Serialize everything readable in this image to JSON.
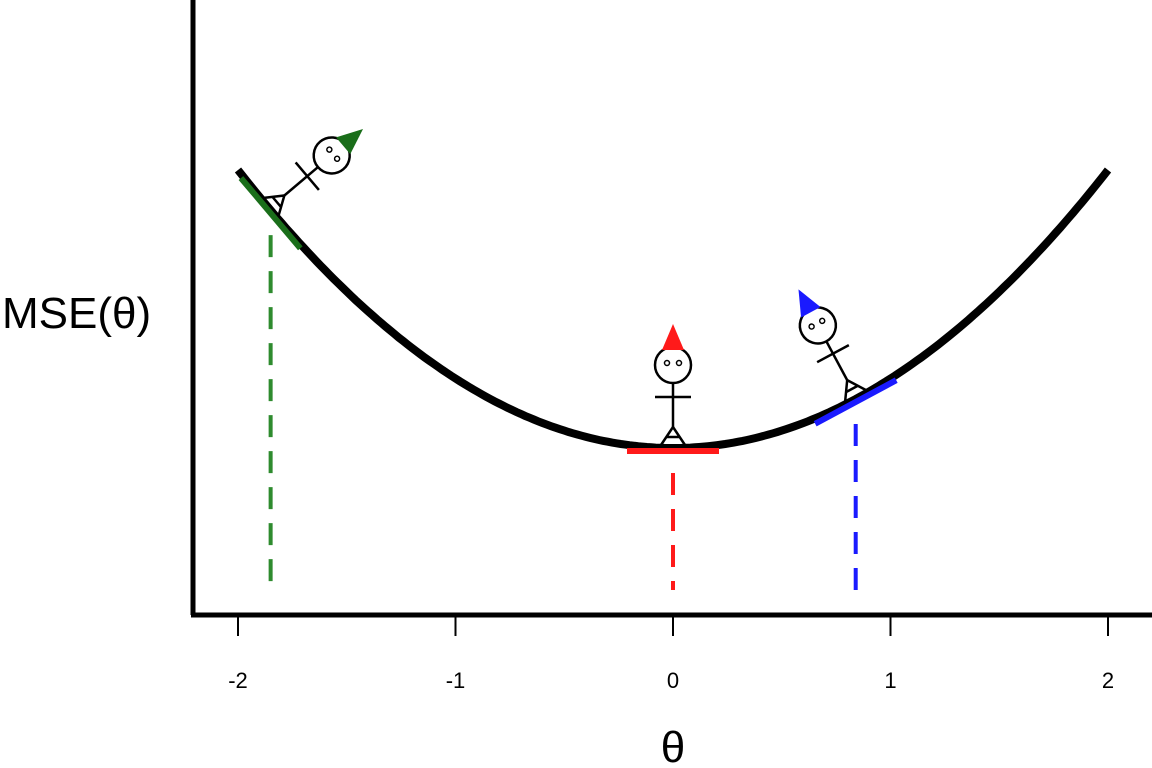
{
  "chart_data": {
    "type": "line",
    "xlabel": "θ",
    "ylabel": "MSE(θ)",
    "xlim": [
      -2.2,
      2.2
    ],
    "x_ticks": [
      -2,
      -1,
      0,
      1,
      2
    ],
    "x_tick_labels": [
      "-2",
      "-1",
      "0",
      "1",
      "2"
    ],
    "y_ticks": [],
    "grid": false,
    "series": [
      {
        "x": [
          -2,
          -1.8,
          -1.6,
          -1.4,
          -1.2,
          -1,
          -0.8,
          -0.6,
          -0.4,
          -0.2,
          0,
          0.2,
          0.4,
          0.6,
          0.8,
          1,
          1.2,
          1.4,
          1.6,
          1.8,
          2
        ],
        "y": [
          4,
          3.24,
          2.56,
          1.96,
          1.44,
          1,
          0.64,
          0.36,
          0.16,
          0.04,
          0,
          0.04,
          0.16,
          0.36,
          0.64,
          1,
          1.44,
          1.96,
          2.56,
          3.24,
          4
        ],
        "color": "#000000"
      }
    ],
    "markers": [
      {
        "x": -1.85,
        "color": "#1a6e1a",
        "dashed_color": "#2e8b2e",
        "icon": "stick-figure-green-hat"
      },
      {
        "x": 0,
        "color": "#ff1a1a",
        "dashed_color": "#ff1a1a",
        "icon": "stick-figure-red-hat"
      },
      {
        "x": 0.84,
        "color": "#1a1aff",
        "dashed_color": "#1a1aff",
        "icon": "stick-figure-blue-hat"
      }
    ]
  }
}
